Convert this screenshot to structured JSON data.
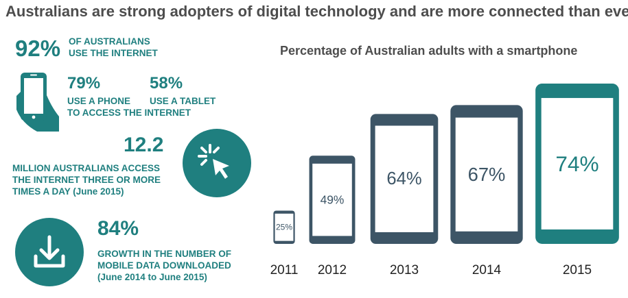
{
  "title": "Australians are strong adopters of digital technology and are more connected than ever",
  "stats": {
    "internet_pct": "92%",
    "internet_caption_1": "OF AUSTRALIANS",
    "internet_caption_2": "USE THE INTERNET",
    "phone_pct": "79%",
    "phone_caption": "USE A PHONE",
    "tablet_pct": "58%",
    "tablet_caption": "USE A TABLET",
    "access_caption": "TO ACCESS THE INTERNET",
    "million_value": "12.2",
    "million_caption_1": "MILLION AUSTRALIANS ACCESS",
    "million_caption_2": "THE INTERNET THREE OR MORE",
    "million_caption_3": "TIMES A DAY (June 2015)",
    "growth_pct": "84%",
    "growth_caption_1": "GROWTH IN THE NUMBER OF",
    "growth_caption_2": "MOBILE DATA DOWNLOADED",
    "growth_caption_3": "(June 2014 to June 2015)"
  },
  "icons": {
    "hand_phone": "hand-holding-phone-icon",
    "click": "click-cursor-icon",
    "download": "download-icon"
  },
  "colors": {
    "teal": "#1f7f7f",
    "slate": "#3d5566",
    "text_gray": "#4d4d4d"
  },
  "chart_data": {
    "type": "bar",
    "title": "Percentage of Australian adults with a smartphone",
    "categories": [
      "2011",
      "2012",
      "2013",
      "2014",
      "2015"
    ],
    "values": [
      25,
      49,
      64,
      67,
      74
    ],
    "labels": [
      "25%",
      "49%",
      "64%",
      "67%",
      "74%"
    ],
    "highlight_category": "2015",
    "xlabel": "",
    "ylabel": ""
  }
}
